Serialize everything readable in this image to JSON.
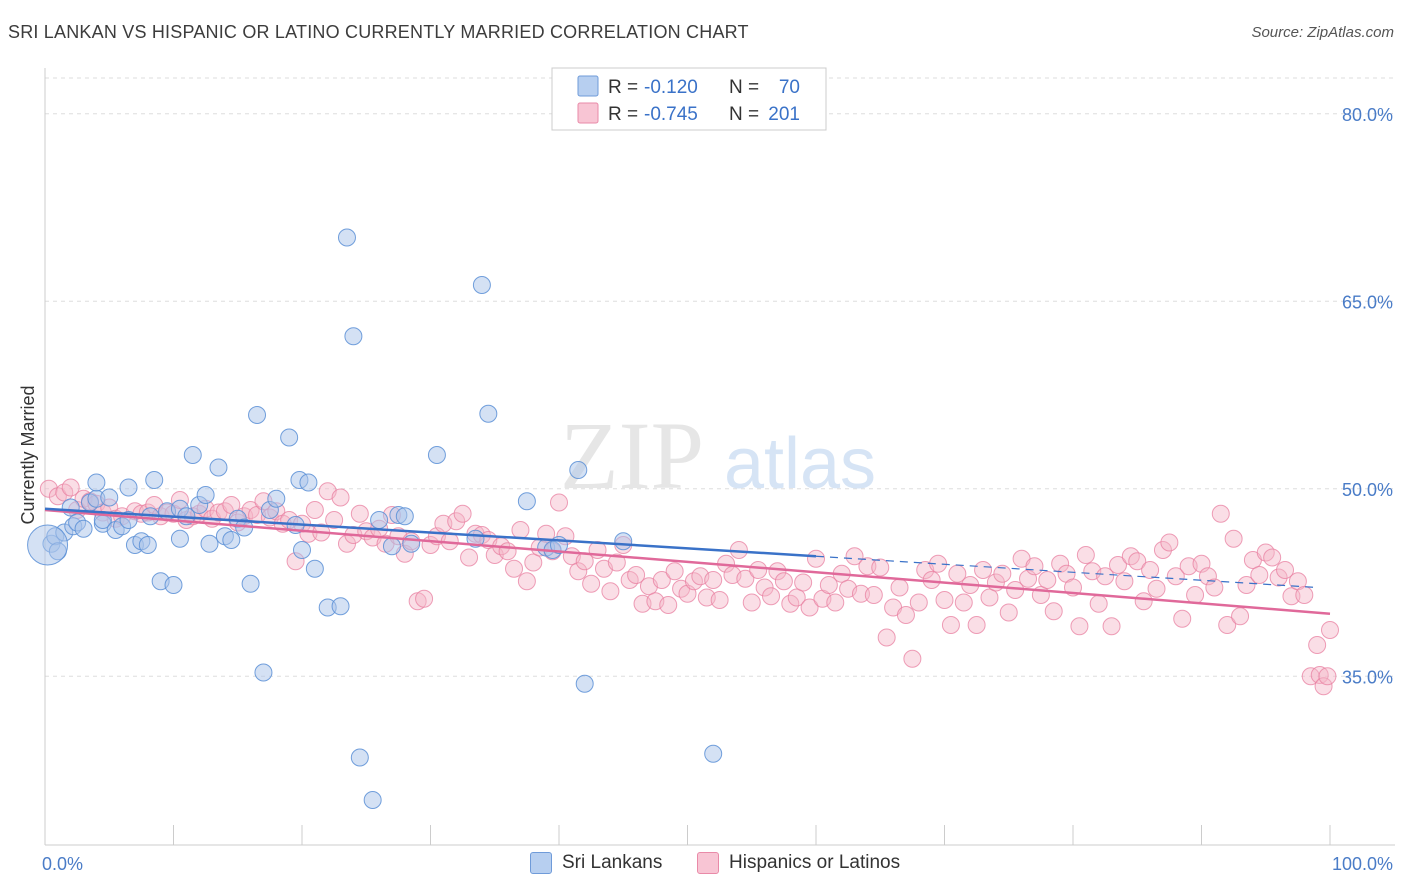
{
  "title": "SRI LANKAN VS HISPANIC OR LATINO CURRENTLY MARRIED CORRELATION CHART",
  "source": "Source: ZipAtlas.com",
  "watermark": {
    "zip": "ZIP",
    "atlas": "atlas"
  },
  "legend": {
    "series": [
      {
        "r_label": "R =",
        "r_value": "-0.120",
        "n_label": "N =",
        "n_value": "70"
      },
      {
        "r_label": "R =",
        "r_value": "-0.745",
        "n_label": "N =",
        "n_value": "201"
      }
    ]
  },
  "bottom_legend": [
    "Sri Lankans",
    "Hispanics or Latinos"
  ],
  "colors": {
    "blue_fill": "#a9c4ea",
    "blue_stroke": "#5b8fd6",
    "blue_line": "#3a72c8",
    "pink_fill": "#f5b5c8",
    "pink_stroke": "#e87fa0",
    "pink_line": "#e0699a",
    "tick_label": "#4a7cc7",
    "grid": "#dddddd"
  },
  "chart_data": {
    "type": "scatter",
    "title": "SRI LANKAN VS HISPANIC OR LATINO CURRENTLY MARRIED CORRELATION CHART",
    "xlabel": "",
    "ylabel": "Currently Married",
    "xlim": [
      0,
      100
    ],
    "ylim": [
      21.5,
      83.5
    ],
    "x_tick_labels": [
      {
        "value": 0,
        "label": "0.0%"
      },
      {
        "value": 100,
        "label": "100.0%"
      }
    ],
    "y_tick_labels": [
      {
        "value": 80,
        "label": "80.0%"
      },
      {
        "value": 65,
        "label": "65.0%"
      },
      {
        "value": 50,
        "label": "50.0%"
      },
      {
        "value": 35,
        "label": "35.0%"
      }
    ],
    "grid": true,
    "series": [
      {
        "name": "Sri Lankans",
        "trend": {
          "x0": 0,
          "y0": 48.4,
          "x1": 60,
          "y1": 44.6,
          "dash_x1": 99,
          "dash_y1": 42.1
        },
        "points": [
          [
            0.5,
            45.6
          ],
          [
            0.8,
            46.2
          ],
          [
            1.0,
            45.0
          ],
          [
            1.5,
            46.5
          ],
          [
            2.0,
            48.5
          ],
          [
            2.2,
            47.0
          ],
          [
            2.5,
            47.3
          ],
          [
            3.0,
            46.8
          ],
          [
            3.5,
            48.9
          ],
          [
            4.0,
            49.2
          ],
          [
            4.0,
            50.5
          ],
          [
            4.5,
            47.2
          ],
          [
            4.5,
            47.5
          ],
          [
            5.0,
            49.3
          ],
          [
            5.5,
            46.7
          ],
          [
            6.0,
            47.0
          ],
          [
            6.5,
            47.5
          ],
          [
            6.5,
            50.1
          ],
          [
            7.0,
            45.5
          ],
          [
            7.5,
            45.8
          ],
          [
            8.0,
            45.5
          ],
          [
            8.2,
            47.8
          ],
          [
            8.5,
            50.7
          ],
          [
            9.0,
            42.6
          ],
          [
            9.5,
            48.2
          ],
          [
            10.0,
            42.3
          ],
          [
            10.5,
            48.4
          ],
          [
            10.5,
            46.0
          ],
          [
            11.0,
            47.8
          ],
          [
            11.5,
            52.7
          ],
          [
            12.0,
            48.7
          ],
          [
            12.5,
            49.5
          ],
          [
            12.8,
            45.6
          ],
          [
            13.5,
            51.7
          ],
          [
            14.0,
            46.2
          ],
          [
            14.5,
            45.9
          ],
          [
            15.0,
            47.6
          ],
          [
            15.5,
            46.9
          ],
          [
            16.0,
            42.4
          ],
          [
            16.5,
            55.9
          ],
          [
            17.0,
            35.3
          ],
          [
            17.5,
            48.3
          ],
          [
            18.0,
            49.2
          ],
          [
            19.0,
            54.1
          ],
          [
            19.5,
            47.1
          ],
          [
            19.8,
            50.7
          ],
          [
            20.0,
            45.1
          ],
          [
            20.5,
            50.5
          ],
          [
            21.0,
            43.6
          ],
          [
            22.0,
            40.5
          ],
          [
            23.0,
            40.6
          ],
          [
            23.5,
            70.1
          ],
          [
            24.0,
            62.2
          ],
          [
            24.5,
            28.5
          ],
          [
            25.5,
            25.1
          ],
          [
            26.0,
            47.5
          ],
          [
            27.0,
            45.4
          ],
          [
            27.5,
            47.9
          ],
          [
            28.0,
            47.8
          ],
          [
            28.5,
            45.6
          ],
          [
            30.5,
            52.7
          ],
          [
            33.5,
            46.0
          ],
          [
            34.0,
            66.3
          ],
          [
            34.5,
            56.0
          ],
          [
            37.5,
            49.0
          ],
          [
            39.0,
            45.3
          ],
          [
            39.5,
            45.1
          ],
          [
            40.0,
            45.5
          ],
          [
            41.5,
            51.5
          ],
          [
            42.0,
            34.4
          ],
          [
            45.0,
            45.8
          ],
          [
            52.0,
            28.8
          ]
        ],
        "big_points": [
          [
            0.2,
            45.5
          ]
        ]
      },
      {
        "name": "Hispanics or Latinos",
        "trend": {
          "x0": 0,
          "y0": 48.3,
          "x1": 100,
          "y1": 40.0
        },
        "points": [
          [
            0.3,
            50.0
          ],
          [
            1.0,
            49.4
          ],
          [
            1.5,
            49.7
          ],
          [
            2.0,
            50.1
          ],
          [
            2.5,
            48.3
          ],
          [
            3.0,
            49.2
          ],
          [
            3.5,
            49.0
          ],
          [
            4.0,
            48.8
          ],
          [
            4.5,
            48.1
          ],
          [
            5.0,
            48.5
          ],
          [
            5.5,
            47.6
          ],
          [
            6.0,
            47.8
          ],
          [
            7.0,
            48.2
          ],
          [
            7.5,
            48.0
          ],
          [
            8.0,
            48.1
          ],
          [
            8.5,
            48.7
          ],
          [
            9.0,
            47.8
          ],
          [
            9.5,
            48.1
          ],
          [
            10.0,
            48.0
          ],
          [
            10.5,
            49.1
          ],
          [
            11.0,
            47.5
          ],
          [
            11.5,
            47.8
          ],
          [
            12.0,
            48.0
          ],
          [
            12.5,
            48.4
          ],
          [
            13.0,
            47.6
          ],
          [
            13.5,
            48.1
          ],
          [
            14.0,
            48.2
          ],
          [
            14.5,
            48.7
          ],
          [
            15.0,
            47.3
          ],
          [
            15.5,
            47.8
          ],
          [
            16.0,
            48.3
          ],
          [
            16.5,
            47.9
          ],
          [
            17.0,
            49.0
          ],
          [
            17.5,
            47.7
          ],
          [
            18.0,
            48.2
          ],
          [
            18.5,
            47.2
          ],
          [
            19.0,
            47.5
          ],
          [
            19.5,
            44.2
          ],
          [
            20.0,
            47.2
          ],
          [
            20.5,
            46.4
          ],
          [
            21.0,
            48.3
          ],
          [
            21.5,
            46.5
          ],
          [
            22.0,
            49.8
          ],
          [
            22.5,
            47.5
          ],
          [
            23.0,
            49.3
          ],
          [
            23.5,
            45.6
          ],
          [
            24.0,
            46.3
          ],
          [
            24.5,
            48.0
          ],
          [
            25.0,
            46.6
          ],
          [
            25.5,
            46.1
          ],
          [
            26.0,
            46.8
          ],
          [
            26.5,
            45.6
          ],
          [
            27.0,
            47.9
          ],
          [
            27.5,
            46.2
          ],
          [
            28.0,
            44.8
          ],
          [
            28.5,
            45.8
          ],
          [
            29.0,
            41.0
          ],
          [
            29.5,
            41.2
          ],
          [
            30.0,
            45.5
          ],
          [
            30.5,
            46.2
          ],
          [
            31.0,
            47.2
          ],
          [
            31.5,
            45.8
          ],
          [
            32.0,
            47.4
          ],
          [
            32.5,
            48.0
          ],
          [
            33.0,
            44.5
          ],
          [
            33.5,
            46.4
          ],
          [
            34.0,
            46.3
          ],
          [
            34.5,
            45.9
          ],
          [
            35.0,
            44.7
          ],
          [
            35.5,
            45.4
          ],
          [
            36.0,
            45.0
          ],
          [
            36.5,
            43.6
          ],
          [
            37.0,
            46.7
          ],
          [
            37.5,
            42.6
          ],
          [
            38.0,
            44.1
          ],
          [
            38.5,
            45.3
          ],
          [
            39.0,
            46.4
          ],
          [
            39.5,
            45.0
          ],
          [
            40.0,
            48.9
          ],
          [
            40.5,
            46.2
          ],
          [
            41.0,
            44.6
          ],
          [
            41.5,
            43.4
          ],
          [
            42.0,
            44.2
          ],
          [
            42.5,
            42.4
          ],
          [
            43.0,
            45.1
          ],
          [
            43.5,
            43.6
          ],
          [
            44.0,
            41.8
          ],
          [
            44.5,
            44.1
          ],
          [
            45.0,
            45.5
          ],
          [
            45.5,
            42.7
          ],
          [
            46.0,
            43.1
          ],
          [
            46.5,
            40.8
          ],
          [
            47.0,
            42.2
          ],
          [
            47.5,
            41.0
          ],
          [
            48.0,
            42.7
          ],
          [
            48.5,
            40.7
          ],
          [
            49.0,
            43.4
          ],
          [
            49.5,
            42.0
          ],
          [
            50.0,
            41.6
          ],
          [
            50.5,
            42.6
          ],
          [
            51.0,
            43.0
          ],
          [
            51.5,
            41.3
          ],
          [
            52.0,
            42.7
          ],
          [
            52.5,
            41.1
          ],
          [
            53.0,
            44.0
          ],
          [
            53.5,
            43.1
          ],
          [
            54.0,
            45.1
          ],
          [
            54.5,
            42.8
          ],
          [
            55.0,
            40.9
          ],
          [
            55.5,
            43.5
          ],
          [
            56.0,
            42.1
          ],
          [
            56.5,
            41.4
          ],
          [
            57.0,
            43.4
          ],
          [
            57.5,
            42.6
          ],
          [
            58.0,
            40.8
          ],
          [
            58.5,
            41.3
          ],
          [
            59.0,
            42.5
          ],
          [
            59.5,
            40.5
          ],
          [
            60.0,
            44.4
          ],
          [
            60.5,
            41.2
          ],
          [
            61.0,
            42.3
          ],
          [
            61.5,
            40.9
          ],
          [
            62.0,
            43.2
          ],
          [
            62.5,
            42.0
          ],
          [
            63.0,
            44.6
          ],
          [
            63.5,
            41.6
          ],
          [
            64.0,
            43.8
          ],
          [
            64.5,
            41.5
          ],
          [
            65.0,
            43.7
          ],
          [
            65.5,
            38.1
          ],
          [
            66.0,
            40.5
          ],
          [
            66.5,
            42.1
          ],
          [
            67.0,
            39.9
          ],
          [
            67.5,
            36.4
          ],
          [
            68.0,
            40.9
          ],
          [
            68.5,
            43.5
          ],
          [
            69.0,
            42.7
          ],
          [
            69.5,
            44.0
          ],
          [
            70.0,
            41.1
          ],
          [
            70.5,
            39.1
          ],
          [
            71.0,
            43.2
          ],
          [
            71.5,
            40.9
          ],
          [
            72.0,
            42.3
          ],
          [
            72.5,
            39.1
          ],
          [
            73.0,
            43.5
          ],
          [
            73.5,
            41.3
          ],
          [
            74.0,
            42.5
          ],
          [
            74.5,
            43.2
          ],
          [
            75.0,
            40.1
          ],
          [
            75.5,
            41.9
          ],
          [
            76.0,
            44.4
          ],
          [
            76.5,
            42.8
          ],
          [
            77.0,
            43.8
          ],
          [
            77.5,
            41.5
          ],
          [
            78.0,
            42.7
          ],
          [
            78.5,
            40.2
          ],
          [
            79.0,
            44.0
          ],
          [
            79.5,
            43.2
          ],
          [
            80.0,
            42.1
          ],
          [
            80.5,
            39.0
          ],
          [
            81.0,
            44.7
          ],
          [
            81.5,
            43.4
          ],
          [
            82.0,
            40.8
          ],
          [
            82.5,
            43.0
          ],
          [
            83.0,
            39.0
          ],
          [
            83.5,
            43.9
          ],
          [
            84.0,
            42.6
          ],
          [
            84.5,
            44.6
          ],
          [
            85.0,
            44.2
          ],
          [
            85.5,
            41.0
          ],
          [
            86.0,
            43.5
          ],
          [
            86.5,
            42.0
          ],
          [
            87.0,
            45.1
          ],
          [
            87.5,
            45.7
          ],
          [
            88.0,
            43.0
          ],
          [
            88.5,
            39.6
          ],
          [
            89.0,
            43.8
          ],
          [
            89.5,
            41.5
          ],
          [
            90.0,
            44.0
          ],
          [
            90.5,
            43.0
          ],
          [
            91.0,
            42.1
          ],
          [
            91.5,
            48.0
          ],
          [
            92.0,
            39.1
          ],
          [
            92.5,
            46.0
          ],
          [
            93.0,
            39.8
          ],
          [
            93.5,
            42.3
          ],
          [
            94.0,
            44.3
          ],
          [
            94.5,
            43.1
          ],
          [
            95.0,
            44.9
          ],
          [
            95.5,
            44.5
          ],
          [
            96.0,
            42.9
          ],
          [
            96.5,
            43.5
          ],
          [
            97.0,
            41.4
          ],
          [
            97.5,
            42.6
          ],
          [
            98.0,
            41.5
          ],
          [
            98.5,
            35.0
          ],
          [
            99.0,
            37.5
          ],
          [
            99.2,
            35.1
          ],
          [
            99.5,
            34.2
          ],
          [
            99.8,
            35.0
          ],
          [
            100.0,
            38.7
          ]
        ]
      }
    ]
  }
}
